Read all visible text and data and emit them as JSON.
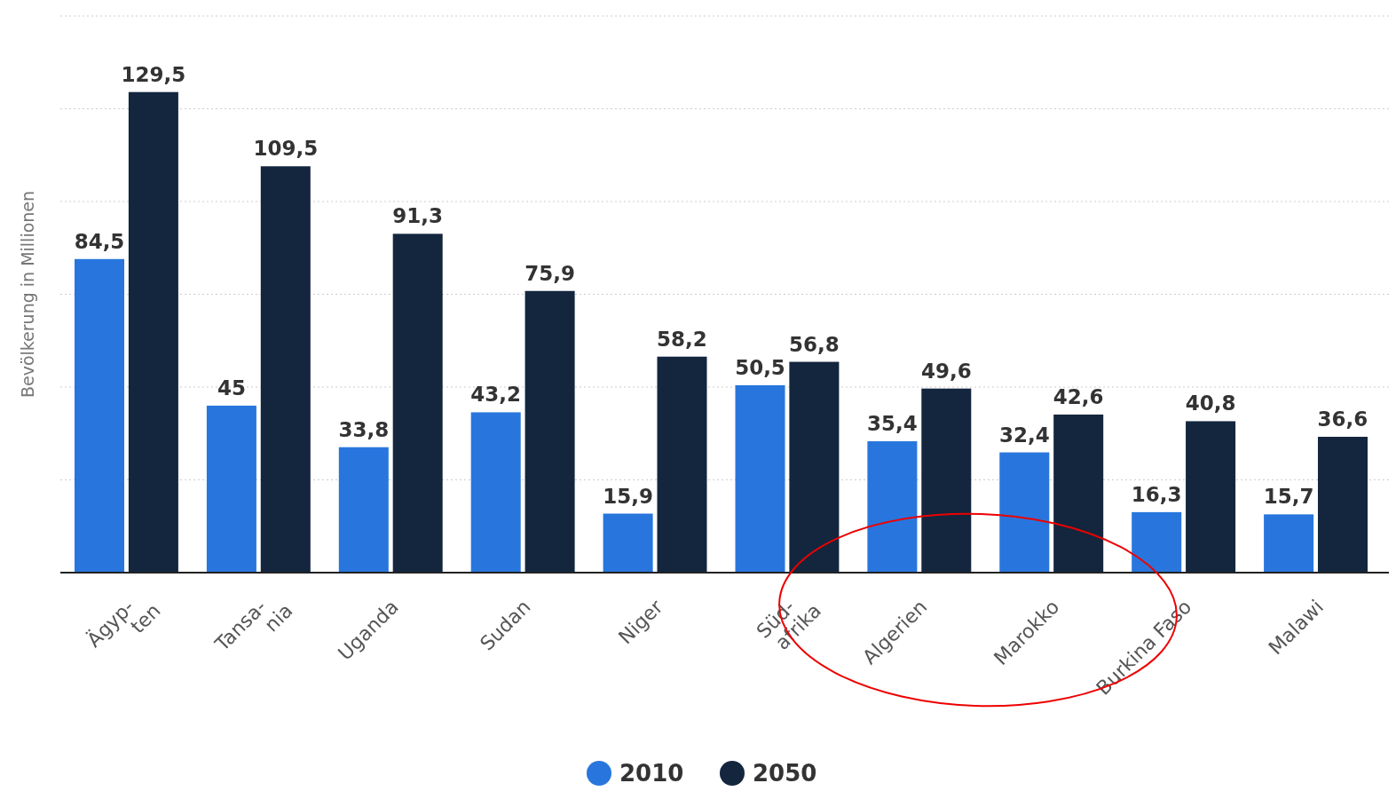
{
  "chart_data": {
    "type": "bar",
    "ylabel": "Bevölkerung in Millionen",
    "categories": [
      "Ägyp-\nten",
      "Tansa-\nnia",
      "Uganda",
      "Sudan",
      "Niger",
      "Süd-\nafrika",
      "Algerien",
      "Marokko",
      "Burkina Faso",
      "Malawi"
    ],
    "series": [
      {
        "name": "2010",
        "color": "#2876dd",
        "values": [
          84.5,
          45,
          33.8,
          43.2,
          15.9,
          50.5,
          35.4,
          32.4,
          16.3,
          15.7
        ],
        "value_labels": [
          "84,5",
          "45",
          "33,8",
          "43,2",
          "15,9",
          "50,5",
          "35,4",
          "32,4",
          "16,3",
          "15,7"
        ]
      },
      {
        "name": "2050",
        "color": "#13263e",
        "values": [
          129.5,
          109.5,
          91.3,
          75.9,
          58.2,
          56.8,
          49.6,
          42.6,
          40.8,
          36.6
        ],
        "value_labels": [
          "129,5",
          "109,5",
          "91,3",
          "75,9",
          "58,2",
          "56,8",
          "49,6",
          "42,6",
          "40,8",
          "36,6"
        ]
      }
    ],
    "ylim": [
      0,
      150
    ],
    "yticks": [
      {
        "value": 0,
        "label": null
      },
      {
        "value": 25,
        "label": null
      },
      {
        "value": 50,
        "label": null
      },
      {
        "value": 75,
        "label": null
      },
      {
        "value": 100,
        "label": null
      },
      {
        "value": 125,
        "label": null
      },
      {
        "value": 150,
        "label": null
      }
    ],
    "grid": "y",
    "legend": "bottom",
    "tick_labels": "x"
  }
}
